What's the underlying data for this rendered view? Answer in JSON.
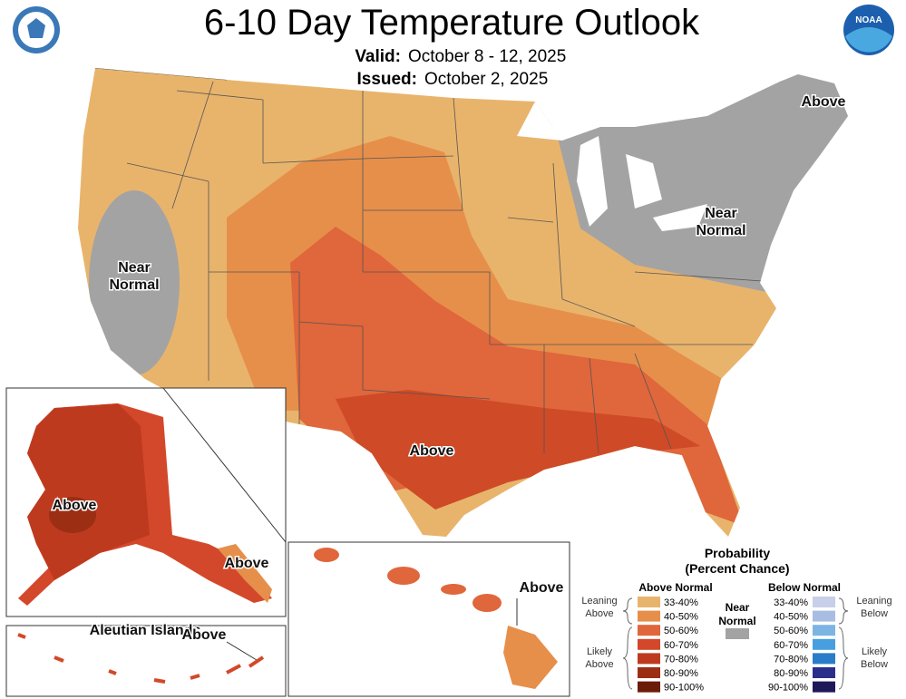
{
  "header": {
    "title": "6-10 Day Temperature Outlook",
    "valid_label": "Valid:",
    "valid_dates": "October 8 - 12, 2025",
    "issued_label": "Issued:",
    "issued_date": "October 2, 2025"
  },
  "logos": {
    "noaa": "NOAA"
  },
  "map_labels": [
    {
      "lines": [
        "Above"
      ]
    },
    {
      "lines": [
        "Near",
        "Normal"
      ]
    },
    {
      "lines": [
        "Near",
        "Normal"
      ]
    },
    {
      "lines": [
        "Above"
      ]
    },
    {
      "lines": [
        "Above"
      ]
    },
    {
      "lines": [
        "Above"
      ]
    },
    {
      "lines": [
        "Aleutian Islands"
      ]
    },
    {
      "lines": [
        "Above"
      ]
    },
    {
      "lines": [
        "Above"
      ]
    }
  ],
  "legend": {
    "title_lines": [
      "Probability",
      "(Percent Chance)"
    ],
    "above_heading": "Above Normal",
    "below_heading": "Below Normal",
    "near_lines": [
      "Near",
      "Normal"
    ],
    "near_color": "#a3a3a3",
    "above_groups": [
      {
        "lines": [
          "Leaning",
          "Above"
        ]
      },
      {
        "lines": [
          "Likely",
          "Above"
        ]
      }
    ],
    "below_groups": [
      {
        "lines": [
          "Leaning",
          "Below"
        ]
      },
      {
        "lines": [
          "Likely",
          "Below"
        ]
      }
    ],
    "above_bins": [
      {
        "label": "33-40%",
        "color": "#e8b46c"
      },
      {
        "label": "40-50%",
        "color": "#e68f4b"
      },
      {
        "label": "50-60%",
        "color": "#e0663b"
      },
      {
        "label": "60-70%",
        "color": "#d3482a"
      },
      {
        "label": "70-80%",
        "color": "#be3a1f"
      },
      {
        "label": "80-90%",
        "color": "#9c2e14"
      },
      {
        "label": "90-100%",
        "color": "#6b1c08"
      }
    ],
    "below_bins": [
      {
        "label": "33-40%",
        "color": "#c8cfe8"
      },
      {
        "label": "40-50%",
        "color": "#a8bde2"
      },
      {
        "label": "50-60%",
        "color": "#7cb5e2"
      },
      {
        "label": "60-70%",
        "color": "#479fe0"
      },
      {
        "label": "70-80%",
        "color": "#2a7cc8"
      },
      {
        "label": "80-90%",
        "color": "#2b2f8c"
      },
      {
        "label": "90-100%",
        "color": "#1e1a58"
      }
    ]
  }
}
